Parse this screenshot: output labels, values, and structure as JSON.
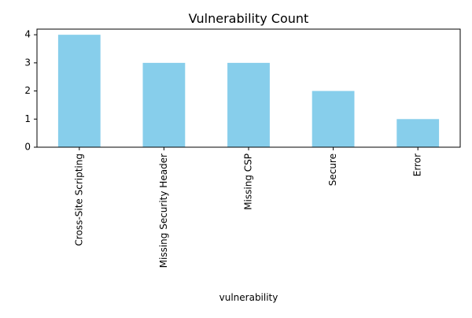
{
  "chart_data": {
    "type": "bar",
    "title": "Vulnerability Count",
    "xlabel": "vulnerability",
    "ylabel": "",
    "categories": [
      "Cross-Site Scripting",
      "Missing Security Header",
      "Missing CSP",
      "Secure",
      "Error"
    ],
    "values": [
      4,
      3,
      3,
      2,
      1
    ],
    "ylim": [
      0,
      4.2
    ],
    "yticks": [
      0,
      1,
      2,
      3,
      4
    ],
    "bar_color": "#87CEEB",
    "grid": false,
    "legend": "none",
    "tick_label_rotation": "vertical"
  }
}
